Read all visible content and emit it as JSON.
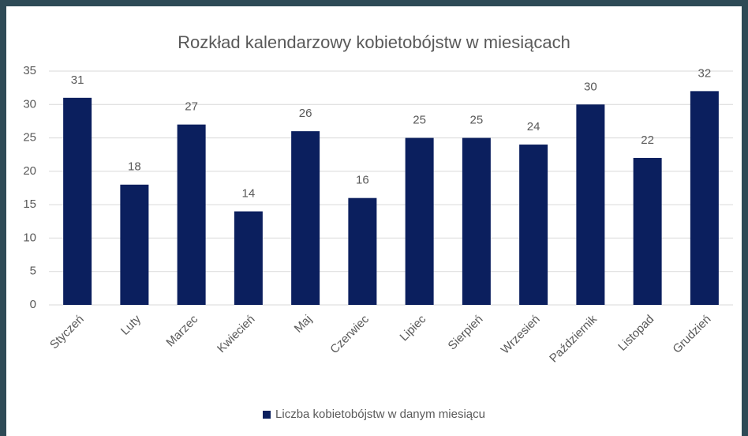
{
  "chart_data": {
    "type": "bar",
    "title": "Rozkład kalendarzowy kobietobójstw w miesiącach",
    "categories": [
      "Styczeń",
      "Luty",
      "Marzec",
      "Kwiecień",
      "Maj",
      "Czerwiec",
      "Lipiec",
      "Sierpień",
      "Wrzesień",
      "Październik",
      "Listopad",
      "Grudzień"
    ],
    "series": [
      {
        "name": "Liczba kobietobójstw w danym miesiącu",
        "color": "#0b1f5e",
        "values": [
          31,
          18,
          27,
          14,
          26,
          16,
          25,
          25,
          24,
          30,
          22,
          32
        ]
      }
    ],
    "ylim": [
      0,
      35
    ],
    "yticks": [
      0,
      5,
      10,
      15,
      20,
      25,
      30,
      35
    ],
    "grid": true,
    "legend": "bottom"
  }
}
